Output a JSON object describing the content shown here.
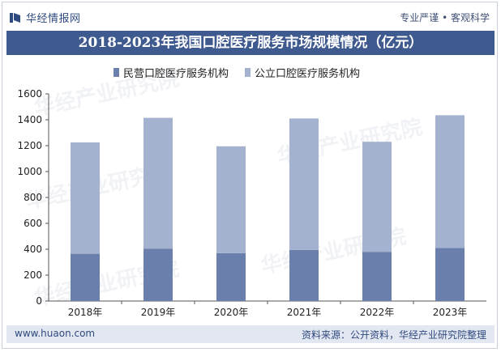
{
  "header": {
    "brand": "华经情报网",
    "tagline": "专业严谨 • 客观科学"
  },
  "footer": {
    "url": "www.huaon.com",
    "source": "资料来源：公开资料，华经产业研究院整理"
  },
  "watermark": "华经产业研究院",
  "colors": {
    "title_band": "#3f5a8f",
    "series_private": "#6a7fab",
    "series_public": "#a4b2cf"
  },
  "chart_data": {
    "type": "bar",
    "stacked": true,
    "title": "2018-2023年我国口腔医疗服务市场规模情况（亿元）",
    "categories": [
      "2018年",
      "2019年",
      "2020年",
      "2021年",
      "2022年",
      "2023年"
    ],
    "series": [
      {
        "name": "民营口腔医疗服务机构",
        "values": [
          365,
          405,
          370,
          395,
          380,
          410
        ]
      },
      {
        "name": "公立口腔医疗服务机构",
        "values": [
          860,
          1010,
          825,
          1015,
          850,
          1025
        ]
      }
    ],
    "ylim": [
      0,
      1600
    ],
    "yticks": [
      0,
      200,
      400,
      600,
      800,
      1000,
      1200,
      1400,
      1600
    ],
    "xlabel": "",
    "ylabel": "",
    "legend_position": "top"
  }
}
